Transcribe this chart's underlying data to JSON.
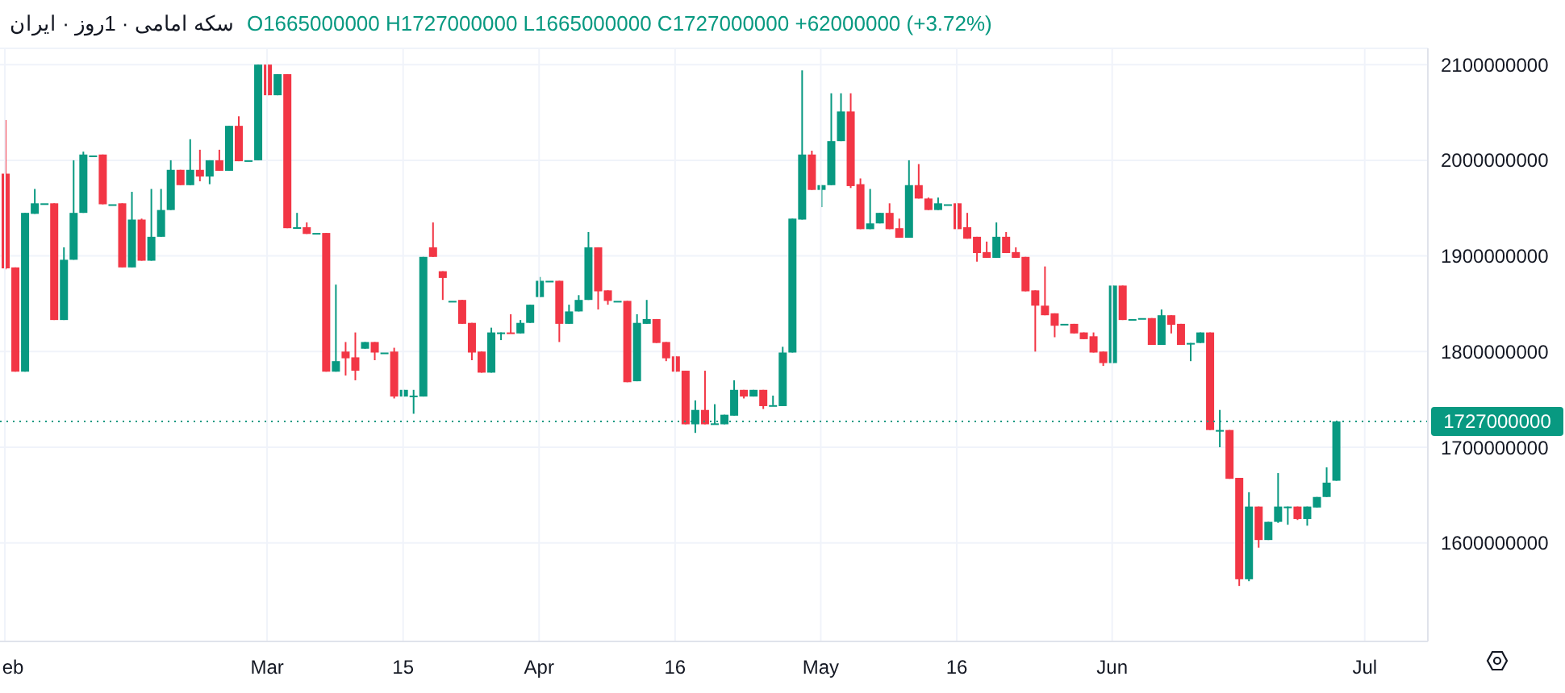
{
  "chart_data": {
    "type": "candlestick",
    "title": "سکه امامی · 1روز · ایران",
    "subtitle": "O1665000000 H1727000000 L1665000000 C1727000000 +62000000 (+3.72%)",
    "categories": [
      "eb",
      null,
      null,
      null,
      null,
      null,
      null,
      null,
      null,
      null,
      null,
      null,
      null,
      null,
      null,
      null,
      null,
      null,
      null,
      null,
      null,
      null,
      null,
      null,
      null,
      null,
      null,
      "Mar",
      null,
      null,
      null,
      null,
      null,
      null,
      null,
      null,
      null,
      null,
      null,
      null,
      null,
      "15",
      null,
      null,
      null,
      null,
      null,
      null,
      null,
      null,
      null,
      null,
      null,
      null,
      null,
      "Apr",
      null,
      null,
      null,
      null,
      null,
      null,
      null,
      null,
      null,
      null,
      null,
      null,
      null,
      "16",
      null,
      null,
      null,
      null,
      null,
      null,
      null,
      null,
      null,
      null,
      null,
      null,
      null,
      null,
      "May",
      null,
      null,
      null,
      null,
      null,
      null,
      null,
      null,
      null,
      null,
      null,
      null,
      null,
      "16",
      null,
      null,
      null,
      null,
      null,
      null,
      null,
      null,
      null,
      null,
      null,
      null,
      null,
      null,
      null,
      "Jun",
      null,
      null,
      null,
      null,
      null,
      null,
      null,
      null,
      null,
      null,
      null,
      null,
      null,
      null,
      null,
      null,
      null,
      null,
      null,
      null,
      null,
      null,
      null,
      null,
      null,
      "Jul",
      null,
      null,
      null,
      null,
      null,
      null
    ],
    "ohlc": [
      [
        1986000000,
        2042000000,
        1886000000,
        1887000000
      ],
      [
        1888000000,
        1888000000,
        1779000000,
        1779000000
      ],
      [
        1779000000,
        1945000000,
        1779000000,
        1945000000
      ],
      [
        1944000000,
        1970000000,
        1944000000,
        1955000000
      ],
      [
        1955000000,
        1955000000,
        1955000000,
        1955000000
      ],
      [
        1955000000,
        1955000000,
        1833000000,
        1833000000
      ],
      [
        1833000000,
        1909000000,
        1833000000,
        1896000000
      ],
      [
        1896000000,
        2000000000,
        1896000000,
        1945000000
      ],
      [
        1945000000,
        2009000000,
        1945000000,
        2006000000
      ],
      [
        2005000000,
        2005000000,
        2005000000,
        2005000000
      ],
      [
        2006000000,
        2006000000,
        1954000000,
        1954000000
      ],
      [
        1954000000,
        1954000000,
        1954000000,
        1954000000
      ],
      [
        1955000000,
        1955000000,
        1888000000,
        1888000000
      ],
      [
        1888000000,
        1967000000,
        1888000000,
        1938000000
      ],
      [
        1938000000,
        1939000000,
        1895000000,
        1895000000
      ],
      [
        1895000000,
        1970000000,
        1895000000,
        1920000000
      ],
      [
        1920000000,
        1970000000,
        1920000000,
        1948000000
      ],
      [
        1948000000,
        2000000000,
        1948000000,
        1990000000
      ],
      [
        1990000000,
        1990000000,
        1974000000,
        1974000000
      ],
      [
        1974000000,
        2022000000,
        1974000000,
        1990000000
      ],
      [
        1990000000,
        2011000000,
        1978000000,
        1983000000
      ],
      [
        1983000000,
        2000000000,
        1975000000,
        2000000000
      ],
      [
        2000000000,
        2011000000,
        1989000000,
        1989000000
      ],
      [
        1989000000,
        2036000000,
        1989000000,
        2036000000
      ],
      [
        2036000000,
        2046000000,
        1999000000,
        1999000000
      ],
      [
        2000000000,
        2000000000,
        2000000000,
        2000000000
      ],
      [
        2000000000,
        2100000000,
        2000000000,
        2100000000
      ],
      [
        2100000000,
        2100000000,
        2068000000,
        2068000000
      ],
      [
        2068000000,
        2090000000,
        2068000000,
        2090000000
      ],
      [
        2090000000,
        2090000000,
        1929000000,
        1929000000
      ],
      [
        1929000000,
        1945000000,
        1929000000,
        1930000000
      ],
      [
        1930000000,
        1935000000,
        1923000000,
        1923000000
      ],
      [
        1924000000,
        1924000000,
        1924000000,
        1924000000
      ],
      [
        1924000000,
        1924000000,
        1779000000,
        1779000000
      ],
      [
        1779000000,
        1870000000,
        1779000000,
        1790000000
      ],
      [
        1800000000,
        1810000000,
        1775000000,
        1793000000
      ],
      [
        1794000000,
        1820000000,
        1770000000,
        1780000000
      ],
      [
        1803000000,
        1810000000,
        1803000000,
        1810000000
      ],
      [
        1810000000,
        1810000000,
        1791000000,
        1799000000
      ],
      [
        1799000000,
        1799000000,
        1799000000,
        1799000000
      ],
      [
        1800000000,
        1804000000,
        1751000000,
        1753000000
      ],
      [
        1753000000,
        1760000000,
        1753000000,
        1760000000
      ],
      [
        1754000000,
        1760000000,
        1735000000,
        1754000000
      ],
      [
        1753000000,
        1899000000,
        1753000000,
        1899000000
      ],
      [
        1909000000,
        1935000000,
        1899000000,
        1899000000
      ],
      [
        1884000000,
        1884000000,
        1854000000,
        1877000000
      ],
      [
        1853000000,
        1853000000,
        1853000000,
        1853000000
      ],
      [
        1854000000,
        1854000000,
        1829000000,
        1829000000
      ],
      [
        1830000000,
        1830000000,
        1791000000,
        1799000000
      ],
      [
        1800000000,
        1800000000,
        1778000000,
        1778000000
      ],
      [
        1778000000,
        1825000000,
        1778000000,
        1820000000
      ],
      [
        1820000000,
        1820000000,
        1812000000,
        1820000000
      ],
      [
        1820000000,
        1839000000,
        1819000000,
        1819000000
      ],
      [
        1819000000,
        1833000000,
        1819000000,
        1830000000
      ],
      [
        1830000000,
        1849000000,
        1830000000,
        1849000000
      ],
      [
        1857000000,
        1878000000,
        1857000000,
        1874000000
      ],
      [
        1874000000,
        1874000000,
        1874000000,
        1874000000
      ],
      [
        1874000000,
        1874000000,
        1810000000,
        1829000000
      ],
      [
        1829000000,
        1849000000,
        1829000000,
        1842000000
      ],
      [
        1842000000,
        1859000000,
        1842000000,
        1854000000
      ],
      [
        1854000000,
        1925000000,
        1854000000,
        1909000000
      ],
      [
        1909000000,
        1909000000,
        1844000000,
        1863000000
      ],
      [
        1864000000,
        1864000000,
        1849000000,
        1853000000
      ],
      [
        1853000000,
        1853000000,
        1853000000,
        1853000000
      ],
      [
        1853000000,
        1853000000,
        1768000000,
        1768000000
      ],
      [
        1769000000,
        1839000000,
        1769000000,
        1830000000
      ],
      [
        1829000000,
        1854000000,
        1829000000,
        1834000000
      ],
      [
        1834000000,
        1834000000,
        1809000000,
        1809000000
      ],
      [
        1810000000,
        1810000000,
        1790000000,
        1793000000
      ],
      [
        1795000000,
        1795000000,
        1779000000,
        1779000000
      ],
      [
        1780000000,
        1780000000,
        1724000000,
        1724000000
      ],
      [
        1724000000,
        1749000000,
        1715000000,
        1739000000
      ],
      [
        1739000000,
        1780000000,
        1724000000,
        1724000000
      ],
      [
        1724000000,
        1745000000,
        1724000000,
        1725000000
      ],
      [
        1724000000,
        1734000000,
        1724000000,
        1734000000
      ],
      [
        1733000000,
        1770000000,
        1733000000,
        1760000000
      ],
      [
        1760000000,
        1760000000,
        1751000000,
        1753000000
      ],
      [
        1753000000,
        1760000000,
        1753000000,
        1760000000
      ],
      [
        1760000000,
        1760000000,
        1740000000,
        1743000000
      ],
      [
        1744000000,
        1754000000,
        1744000000,
        1744000000
      ],
      [
        1743000000,
        1805000000,
        1743000000,
        1799000000
      ],
      [
        1799000000,
        1939000000,
        1799000000,
        1939000000
      ],
      [
        1938000000,
        2094000000,
        1938000000,
        2006000000
      ],
      [
        2006000000,
        2010000000,
        1969000000,
        1969000000
      ],
      [
        1969000000,
        1974000000,
        1951000000,
        1974000000
      ],
      [
        1974000000,
        2070000000,
        1974000000,
        2020000000
      ],
      [
        2020000000,
        2070000000,
        2020000000,
        2051000000
      ],
      [
        2051000000,
        2070000000,
        1971000000,
        1973000000
      ],
      [
        1975000000,
        1981000000,
        1928000000,
        1928000000
      ],
      [
        1928000000,
        1970000000,
        1928000000,
        1934000000
      ],
      [
        1934000000,
        1945000000,
        1934000000,
        1945000000
      ],
      [
        1945000000,
        1955000000,
        1928000000,
        1928000000
      ],
      [
        1929000000,
        1939000000,
        1919000000,
        1919000000
      ],
      [
        1919000000,
        2000000000,
        1919000000,
        1974000000
      ],
      [
        1974000000,
        1996000000,
        1960000000,
        1960000000
      ],
      [
        1960000000,
        1961000000,
        1948000000,
        1948000000
      ],
      [
        1948000000,
        1961000000,
        1948000000,
        1955000000
      ],
      [
        1954000000,
        1954000000,
        1954000000,
        1954000000
      ],
      [
        1955000000,
        1955000000,
        1928000000,
        1928000000
      ],
      [
        1930000000,
        1945000000,
        1918000000,
        1918000000
      ],
      [
        1920000000,
        1920000000,
        1894000000,
        1903000000
      ],
      [
        1904000000,
        1915000000,
        1898000000,
        1898000000
      ],
      [
        1898000000,
        1935000000,
        1898000000,
        1920000000
      ],
      [
        1920000000,
        1925000000,
        1903000000,
        1903000000
      ],
      [
        1904000000,
        1909000000,
        1898000000,
        1898000000
      ],
      [
        1899000000,
        1899000000,
        1863000000,
        1863000000
      ],
      [
        1864000000,
        1864000000,
        1800000000,
        1848000000
      ],
      [
        1848000000,
        1889000000,
        1838000000,
        1838000000
      ],
      [
        1840000000,
        1840000000,
        1815000000,
        1827000000
      ],
      [
        1829000000,
        1829000000,
        1829000000,
        1829000000
      ],
      [
        1829000000,
        1829000000,
        1819000000,
        1819000000
      ],
      [
        1820000000,
        1820000000,
        1813000000,
        1813000000
      ],
      [
        1816000000,
        1820000000,
        1799000000,
        1799000000
      ],
      [
        1800000000,
        1800000000,
        1785000000,
        1788000000
      ],
      [
        1788000000,
        1869000000,
        1788000000,
        1869000000
      ],
      [
        1869000000,
        1869000000,
        1833000000,
        1833000000
      ],
      [
        1834000000,
        1834000000,
        1834000000,
        1834000000
      ],
      [
        1835000000,
        1835000000,
        1835000000,
        1835000000
      ],
      [
        1835000000,
        1835000000,
        1807000000,
        1807000000
      ],
      [
        1807000000,
        1844000000,
        1807000000,
        1838000000
      ],
      [
        1838000000,
        1838000000,
        1819000000,
        1828000000
      ],
      [
        1829000000,
        1829000000,
        1807000000,
        1807000000
      ],
      [
        1809000000,
        1809000000,
        1790000000,
        1809000000
      ],
      [
        1809000000,
        1820000000,
        1809000000,
        1820000000
      ],
      [
        1820000000,
        1820000000,
        1718000000,
        1718000000
      ],
      [
        1718000000,
        1739000000,
        1700000000,
        1718000000
      ],
      [
        1718000000,
        1718000000,
        1667000000,
        1667000000
      ],
      [
        1668000000,
        1668000000,
        1555000000,
        1562000000
      ],
      [
        1562000000,
        1653000000,
        1560000000,
        1638000000
      ],
      [
        1638000000,
        1638000000,
        1595000000,
        1603000000
      ],
      [
        1603000000,
        1622000000,
        1603000000,
        1622000000
      ],
      [
        1622000000,
        1673000000,
        1621000000,
        1638000000
      ],
      [
        1638000000,
        1638000000,
        1619000000,
        1638000000
      ],
      [
        1638000000,
        1638000000,
        1624000000,
        1625000000
      ],
      [
        1625000000,
        1638000000,
        1618000000,
        1638000000
      ],
      [
        1637000000,
        1648000000,
        1637000000,
        1648000000
      ],
      [
        1648000000,
        1679000000,
        1648000000,
        1663000000
      ],
      [
        1665000000,
        1727000000,
        1665000000,
        1727000000
      ],
      null,
      null,
      null,
      null,
      null,
      null,
      null,
      null,
      null
    ],
    "colors": [
      "#f23645",
      "#f23645",
      "#089981",
      "#089981",
      "#089981",
      "#f23645",
      "#089981",
      "#089981",
      "#089981",
      "#089981",
      "#f23645",
      "#089981",
      "#f23645",
      "#089981",
      "#f23645",
      "#089981",
      "#089981",
      "#089981",
      "#f23645",
      "#089981",
      "#f23645",
      "#089981",
      "#f23645",
      "#089981",
      "#f23645",
      "#089981",
      "#089981",
      "#f23645",
      "#089981",
      "#f23645",
      "#089981",
      "#f23645",
      "#089981",
      "#f23645",
      "#089981",
      "#f23645",
      "#f23645",
      "#089981",
      "#f23645",
      "#089981",
      "#f23645",
      "#089981",
      "#089981",
      "#089981",
      "#f23645",
      "#f23645",
      "#089981",
      "#f23645",
      "#f23645",
      "#f23645",
      "#089981",
      "#089981",
      "#f23645",
      "#089981",
      "#089981",
      "#089981",
      "#089981",
      "#f23645",
      "#089981",
      "#089981",
      "#089981",
      "#f23645",
      "#f23645",
      "#089981",
      "#f23645",
      "#089981",
      "#089981",
      "#f23645",
      "#f23645",
      "#f23645",
      "#f23645",
      "#089981",
      "#f23645",
      "#089981",
      "#089981",
      "#089981",
      "#f23645",
      "#089981",
      "#f23645",
      "#089981",
      "#089981",
      "#089981",
      "#089981",
      "#f23645",
      "#089981",
      "#089981",
      "#089981",
      "#f23645",
      "#f23645",
      "#089981",
      "#089981",
      "#f23645",
      "#f23645",
      "#089981",
      "#f23645",
      "#f23645",
      "#089981",
      "#089981",
      "#f23645",
      "#f23645",
      "#f23645",
      "#f23645",
      "#089981",
      "#f23645",
      "#f23645",
      "#f23645",
      "#f23645",
      "#f23645",
      "#f23645",
      "#089981",
      "#f23645",
      "#f23645",
      "#f23645",
      "#f23645",
      "#089981",
      "#f23645",
      "#089981",
      "#089981",
      "#f23645",
      "#089981",
      "#f23645",
      "#f23645",
      "#089981",
      "#089981",
      "#f23645",
      "#089981",
      "#f23645",
      "#f23645",
      "#089981",
      "#f23645",
      "#089981",
      "#089981",
      "#089981",
      "#f23645",
      "#089981",
      "#089981",
      "#089981",
      "#089981",
      null,
      null,
      null,
      null,
      null,
      null,
      null,
      null,
      null
    ],
    "ylim": [
      1497000000,
      2117000000
    ],
    "yticks": [
      1600000000,
      1700000000,
      1800000000,
      1900000000,
      2000000000,
      2100000000
    ],
    "grid": true,
    "ref_lines": [
      {
        "axis": "y",
        "value": 1727000000,
        "label": "1727000000",
        "color": "#089981",
        "line_style": "dotted"
      }
    ]
  }
}
